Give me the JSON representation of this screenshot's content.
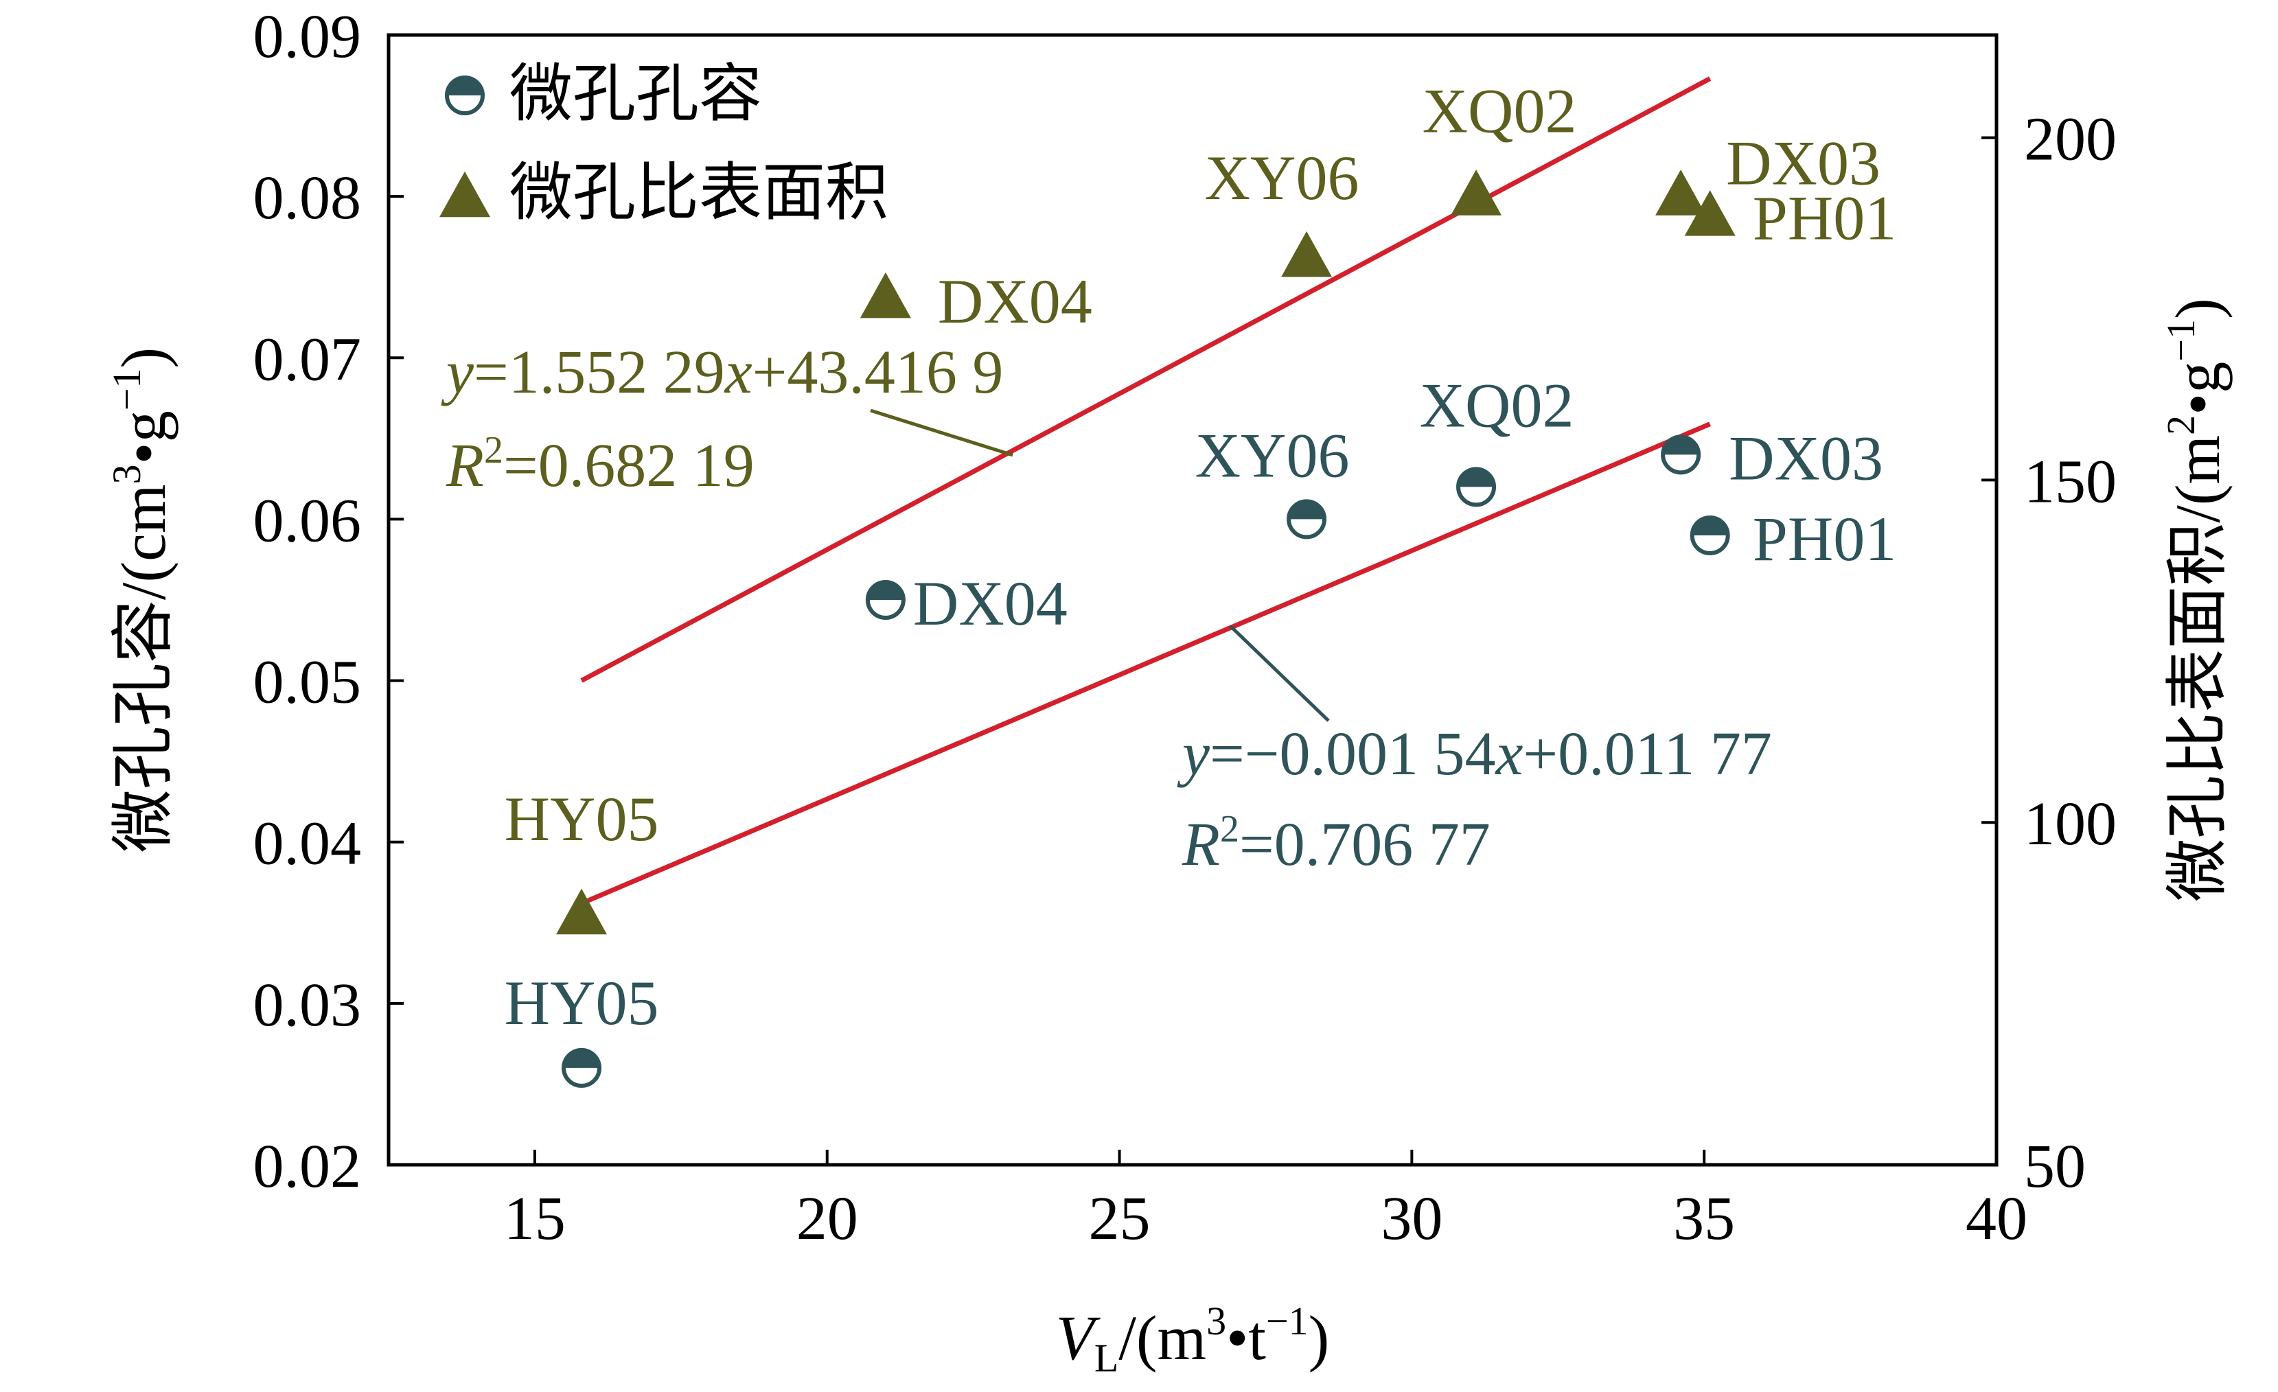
{
  "colors": {
    "olive": "#5c5f1d",
    "teal": "#2e5459",
    "fit": "#d4202c",
    "axis": "#000000"
  },
  "chart_data": {
    "type": "scatter",
    "x_axis": {
      "label_italic": "V",
      "label_sub": "L",
      "label_rest": "/(m",
      "label_sup": "3",
      "label_tail": "•t",
      "label_sup2": "−1",
      "label_close": ")",
      "range": [
        12.5,
        40
      ],
      "ticks": [
        15,
        20,
        25,
        30,
        35,
        40
      ],
      "tick_labels": [
        "15",
        "20",
        "25",
        "30",
        "35",
        "40"
      ]
    },
    "y_left": {
      "label_main": "微孔孔容/(cm",
      "label_sup": "3",
      "label_mid": "•g",
      "label_sup2": "−1",
      "label_close": ")",
      "range": [
        0.02,
        0.09
      ],
      "ticks": [
        0.02,
        0.03,
        0.04,
        0.05,
        0.06,
        0.07,
        0.08,
        0.09
      ],
      "tick_labels": [
        "0.02",
        "0.03",
        "0.04",
        "0.05",
        "0.06",
        "0.07",
        "0.08",
        "0.09"
      ]
    },
    "y_right": {
      "label_main": "微孔比表面积/(m",
      "label_sup": "2",
      "label_mid": "•g",
      "label_sup2": "−1",
      "label_close": ")",
      "range": [
        50,
        215
      ],
      "ticks": [
        50,
        100,
        150,
        200
      ],
      "tick_labels": [
        "50",
        "100",
        "150",
        "200"
      ]
    },
    "legend": {
      "placement": "top-left",
      "items": [
        {
          "label": "微孔孔容",
          "marker": "half-circle",
          "color": "teal"
        },
        {
          "label": "微孔比表面积",
          "marker": "triangle",
          "color": "olive"
        }
      ]
    },
    "series": [
      {
        "name": "微孔孔容",
        "axis": "left",
        "points": [
          {
            "label": "HY05",
            "x": 15.8,
            "y": 0.026
          },
          {
            "label": "DX04",
            "x": 21.0,
            "y": 0.055
          },
          {
            "label": "XY06",
            "x": 28.2,
            "y": 0.06
          },
          {
            "label": "XQ02",
            "x": 31.1,
            "y": 0.062
          },
          {
            "label": "DX03",
            "x": 34.6,
            "y": 0.064
          },
          {
            "label": "PH01",
            "x": 35.1,
            "y": 0.059
          }
        ]
      },
      {
        "name": "微孔比表面积",
        "axis": "right",
        "points": [
          {
            "label": "HY05",
            "x": 15.8,
            "y": 87
          },
          {
            "label": "DX04",
            "x": 21.0,
            "y": 177
          },
          {
            "label": "XY06",
            "x": 28.2,
            "y": 183
          },
          {
            "label": "XQ02",
            "x": 31.1,
            "y": 192
          },
          {
            "label": "DX03",
            "x": 34.6,
            "y": 192
          },
          {
            "label": "PH01",
            "x": 35.1,
            "y": 189
          }
        ]
      }
    ],
    "fits": [
      {
        "series": "微孔比表面积",
        "eq_y": "y",
        "eq_a": "=1.552 29",
        "eq_x": "x",
        "eq_b": "+43.416 9",
        "r2_r": "R",
        "r2_sup": "2",
        "r2_value": "=0.682 19",
        "line": {
          "x1": 15.8,
          "y1": 0.05,
          "x2": 35.1,
          "y2": 0.0873
        }
      },
      {
        "series": "微孔孔容",
        "eq_y": "y",
        "eq_a": "=−0.001 54",
        "eq_x": "x",
        "eq_b": "+0.011 77",
        "r2_r": "R",
        "r2_sup": "2",
        "r2_value": "=0.706 77",
        "line": {
          "x1": 15.8,
          "y1": 0.0362,
          "x2": 35.1,
          "y2": 0.0659
        }
      }
    ]
  }
}
